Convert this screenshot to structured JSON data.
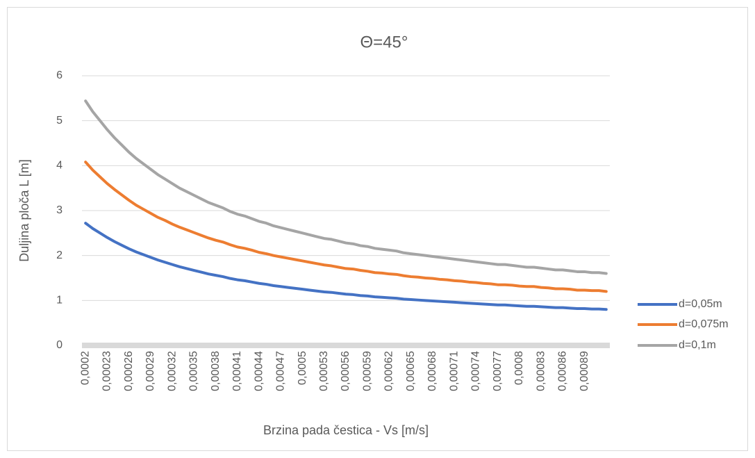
{
  "chart_data": {
    "type": "line",
    "title": "Θ=45°",
    "x_label": "Brzina pada čestica - Vs [m/s]",
    "y_label": "Duljina ploča L [m]",
    "categories": [
      "0,0002",
      null,
      null,
      "0,00023",
      null,
      null,
      "0,00026",
      null,
      null,
      "0,00029",
      null,
      null,
      "0,00032",
      null,
      null,
      "0,00035",
      null,
      null,
      "0,00038",
      null,
      null,
      "0,00041",
      null,
      null,
      "0,00044",
      null,
      null,
      "0,00047",
      null,
      null,
      "0,0005",
      null,
      null,
      "0,00053",
      null,
      null,
      "0,00056",
      null,
      null,
      "0,00059",
      null,
      null,
      "0,00062",
      null,
      null,
      "0,00065",
      null,
      null,
      "0,00068",
      null,
      null,
      "0,00071",
      null,
      null,
      "0,00074",
      null,
      null,
      "0,00077",
      null,
      null,
      "0,0008",
      null,
      null,
      "0,00083",
      null,
      null,
      "0,00086",
      null,
      null,
      "0,00089",
      null,
      null,
      null
    ],
    "series": [
      {
        "name": "d=0,05m",
        "color": "#4472c4",
        "values": [
          2.72,
          2.6,
          2.5,
          2.4,
          2.31,
          2.23,
          2.15,
          2.08,
          2.02,
          1.96,
          1.9,
          1.85,
          1.8,
          1.75,
          1.71,
          1.67,
          1.63,
          1.59,
          1.56,
          1.53,
          1.49,
          1.46,
          1.44,
          1.41,
          1.38,
          1.36,
          1.33,
          1.31,
          1.29,
          1.27,
          1.25,
          1.23,
          1.21,
          1.19,
          1.18,
          1.16,
          1.14,
          1.13,
          1.11,
          1.1,
          1.08,
          1.07,
          1.06,
          1.05,
          1.03,
          1.02,
          1.01,
          1.0,
          0.99,
          0.98,
          0.97,
          0.96,
          0.95,
          0.94,
          0.93,
          0.92,
          0.91,
          0.9,
          0.9,
          0.89,
          0.88,
          0.87,
          0.87,
          0.86,
          0.85,
          0.84,
          0.84,
          0.83,
          0.82,
          0.82,
          0.81,
          0.81,
          0.8
        ]
      },
      {
        "name": "d=0,075m",
        "color": "#ed7d31",
        "values": [
          4.08,
          3.9,
          3.75,
          3.6,
          3.47,
          3.35,
          3.23,
          3.12,
          3.03,
          2.94,
          2.85,
          2.78,
          2.7,
          2.63,
          2.57,
          2.51,
          2.45,
          2.39,
          2.34,
          2.3,
          2.24,
          2.19,
          2.16,
          2.12,
          2.07,
          2.04,
          2.0,
          1.97,
          1.94,
          1.91,
          1.88,
          1.85,
          1.82,
          1.79,
          1.77,
          1.74,
          1.71,
          1.7,
          1.67,
          1.65,
          1.62,
          1.61,
          1.59,
          1.58,
          1.55,
          1.53,
          1.52,
          1.5,
          1.49,
          1.47,
          1.46,
          1.44,
          1.43,
          1.41,
          1.4,
          1.38,
          1.37,
          1.35,
          1.35,
          1.34,
          1.32,
          1.31,
          1.31,
          1.29,
          1.28,
          1.26,
          1.26,
          1.25,
          1.23,
          1.23,
          1.22,
          1.22,
          1.2
        ]
      },
      {
        "name": "d=0,1m",
        "color": "#a5a5a5",
        "values": [
          5.44,
          5.2,
          5.0,
          4.8,
          4.62,
          4.46,
          4.3,
          4.16,
          4.04,
          3.92,
          3.8,
          3.7,
          3.6,
          3.5,
          3.42,
          3.34,
          3.26,
          3.18,
          3.12,
          3.06,
          2.98,
          2.92,
          2.88,
          2.82,
          2.76,
          2.72,
          2.66,
          2.62,
          2.58,
          2.54,
          2.5,
          2.46,
          2.42,
          2.38,
          2.36,
          2.32,
          2.28,
          2.26,
          2.22,
          2.2,
          2.16,
          2.14,
          2.12,
          2.1,
          2.06,
          2.04,
          2.02,
          2.0,
          1.98,
          1.96,
          1.94,
          1.92,
          1.9,
          1.88,
          1.86,
          1.84,
          1.82,
          1.8,
          1.8,
          1.78,
          1.76,
          1.74,
          1.74,
          1.72,
          1.7,
          1.68,
          1.68,
          1.66,
          1.64,
          1.64,
          1.62,
          1.62,
          1.6
        ]
      }
    ],
    "ylim": [
      0,
      6
    ],
    "yticks": [
      0,
      1,
      2,
      3,
      4,
      5,
      6
    ],
    "grid": true,
    "legend": "right"
  }
}
